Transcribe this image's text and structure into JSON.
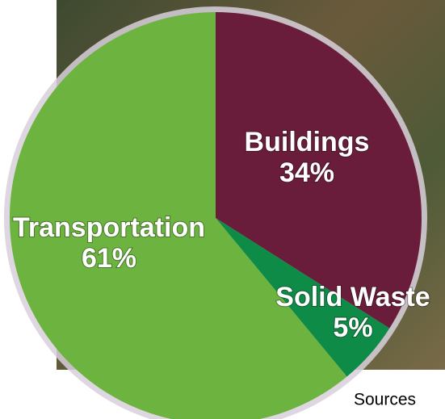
{
  "chart_data": {
    "type": "pie",
    "categories": [
      "Buildings",
      "Solid Waste",
      "Transportation"
    ],
    "values": [
      34,
      5,
      61
    ],
    "value_labels": [
      "34%",
      "5%",
      "61%"
    ],
    "colors": [
      "#6a1d3b",
      "#0e8b47",
      "#6cb43f"
    ]
  },
  "sources_link": "Sources"
}
